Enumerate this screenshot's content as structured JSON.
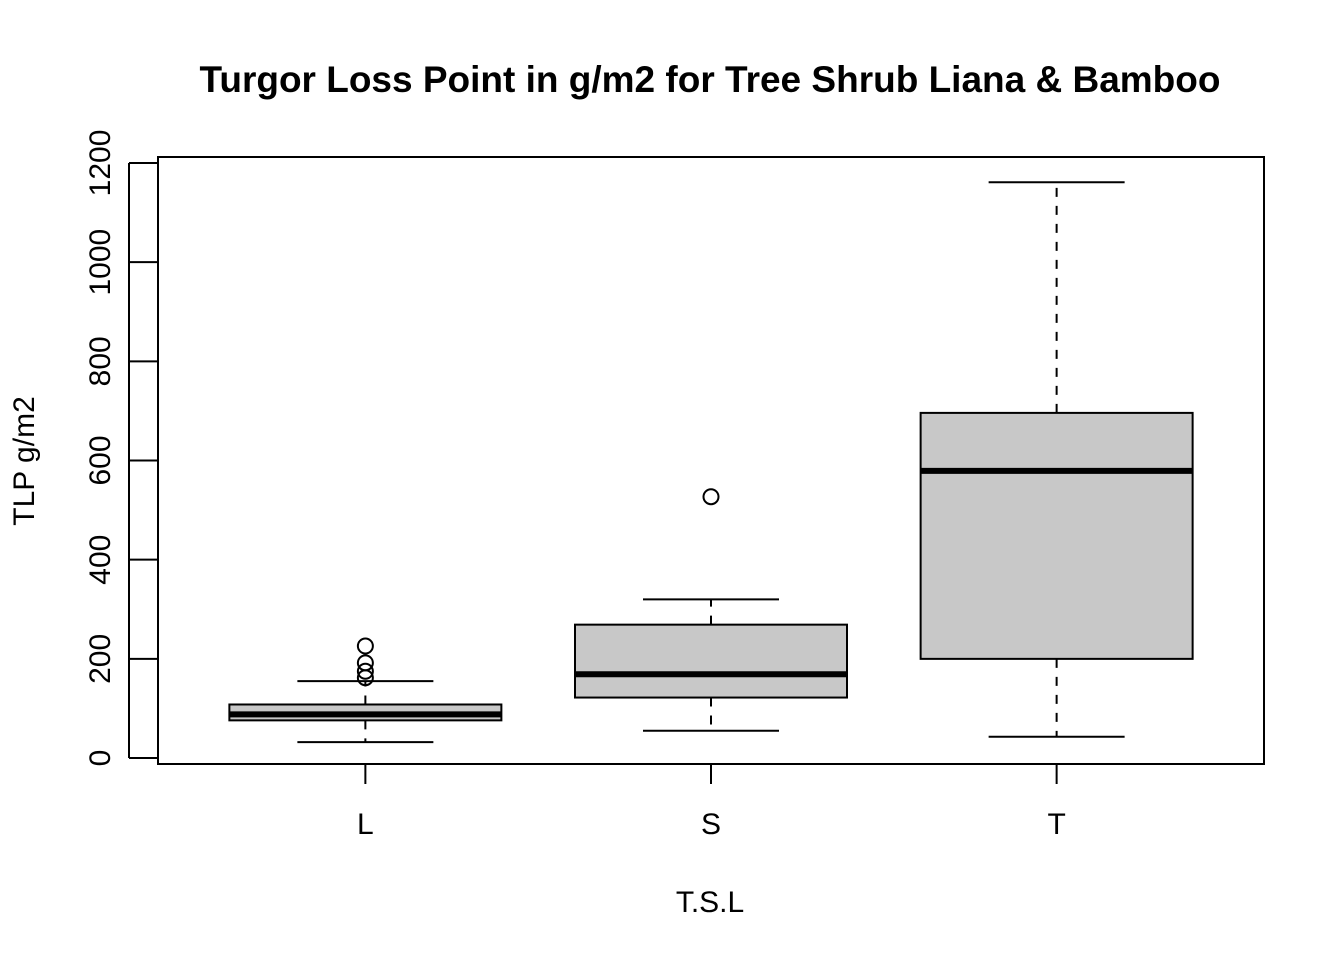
{
  "chart_data": {
    "type": "box",
    "title": "Turgor Loss Point in g/m2 for Tree Shrub Liana & Bamboo",
    "xlabel": "T.S.L",
    "ylabel": "TLP g/m2",
    "ylim": [
      -12,
      1212
    ],
    "yticks": [
      0,
      200,
      400,
      600,
      800,
      1000,
      1200
    ],
    "categories": [
      "L",
      "S",
      "T"
    ],
    "boxes": [
      {
        "category": "L",
        "whisker_low": 32,
        "q1": 76,
        "median": 88,
        "q3": 108,
        "whisker_high": 155,
        "outliers": [
          162,
          175,
          192,
          226
        ]
      },
      {
        "category": "S",
        "whisker_low": 55,
        "q1": 122,
        "median": 169,
        "q3": 269,
        "whisker_high": 320,
        "outliers": [
          527
        ]
      },
      {
        "category": "T",
        "whisker_low": 43,
        "q1": 200,
        "median": 579,
        "q3": 696,
        "whisker_high": 1161,
        "outliers": []
      }
    ],
    "box_fill": "#c8c8c8",
    "line_color": "#000000",
    "grid": false,
    "legend": "none"
  }
}
